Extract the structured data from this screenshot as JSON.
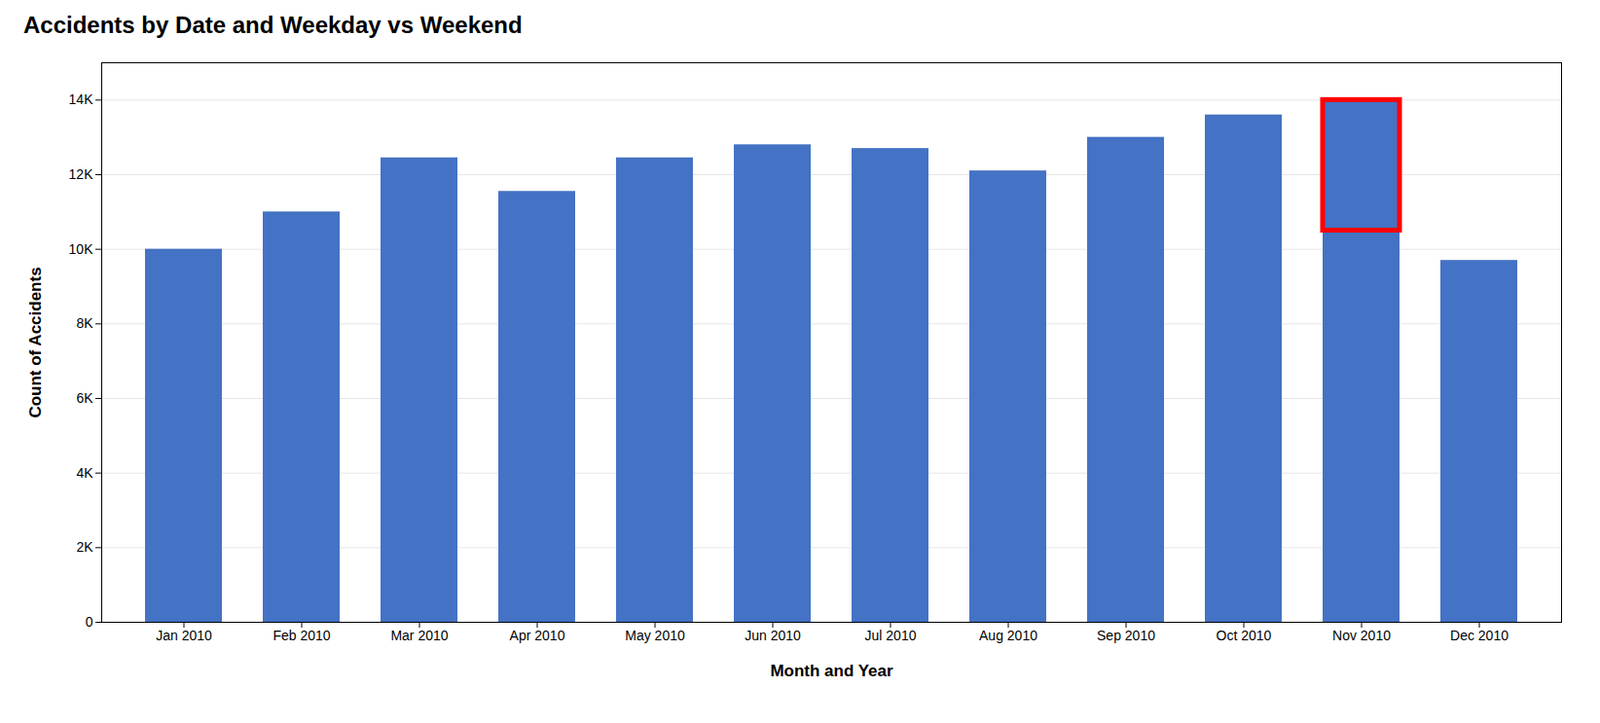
{
  "chart_data": {
    "type": "bar",
    "title": "Accidents by Date and Weekday vs Weekend",
    "xlabel": "Month and Year",
    "ylabel": "Count of Accidents",
    "categories": [
      "Jan 2010",
      "Feb 2010",
      "Mar 2010",
      "Apr 2010",
      "May 2010",
      "Jun 2010",
      "Jul 2010",
      "Aug 2010",
      "Sep 2010",
      "Oct 2010",
      "Nov 2010",
      "Dec 2010"
    ],
    "values": [
      10000,
      11000,
      12450,
      11550,
      12450,
      12800,
      12700,
      12100,
      13000,
      13600,
      14000,
      9700
    ],
    "color": "#4472C4",
    "ylim": [
      0,
      15000
    ],
    "yticks": [
      0,
      {
        "value": 2000,
        "label": "2K"
      },
      {
        "value": 4000,
        "label": "4K"
      },
      {
        "value": 6000,
        "label": "6K"
      },
      {
        "value": 8000,
        "label": "8K"
      },
      {
        "value": 10000,
        "label": "10K"
      },
      {
        "value": 12000,
        "label": "12K"
      },
      {
        "value": 14000,
        "label": "14K"
      }
    ],
    "grid": true,
    "highlight": {
      "category": "Nov 2010",
      "bottom": 10500,
      "top": 14000,
      "color": "red"
    }
  }
}
